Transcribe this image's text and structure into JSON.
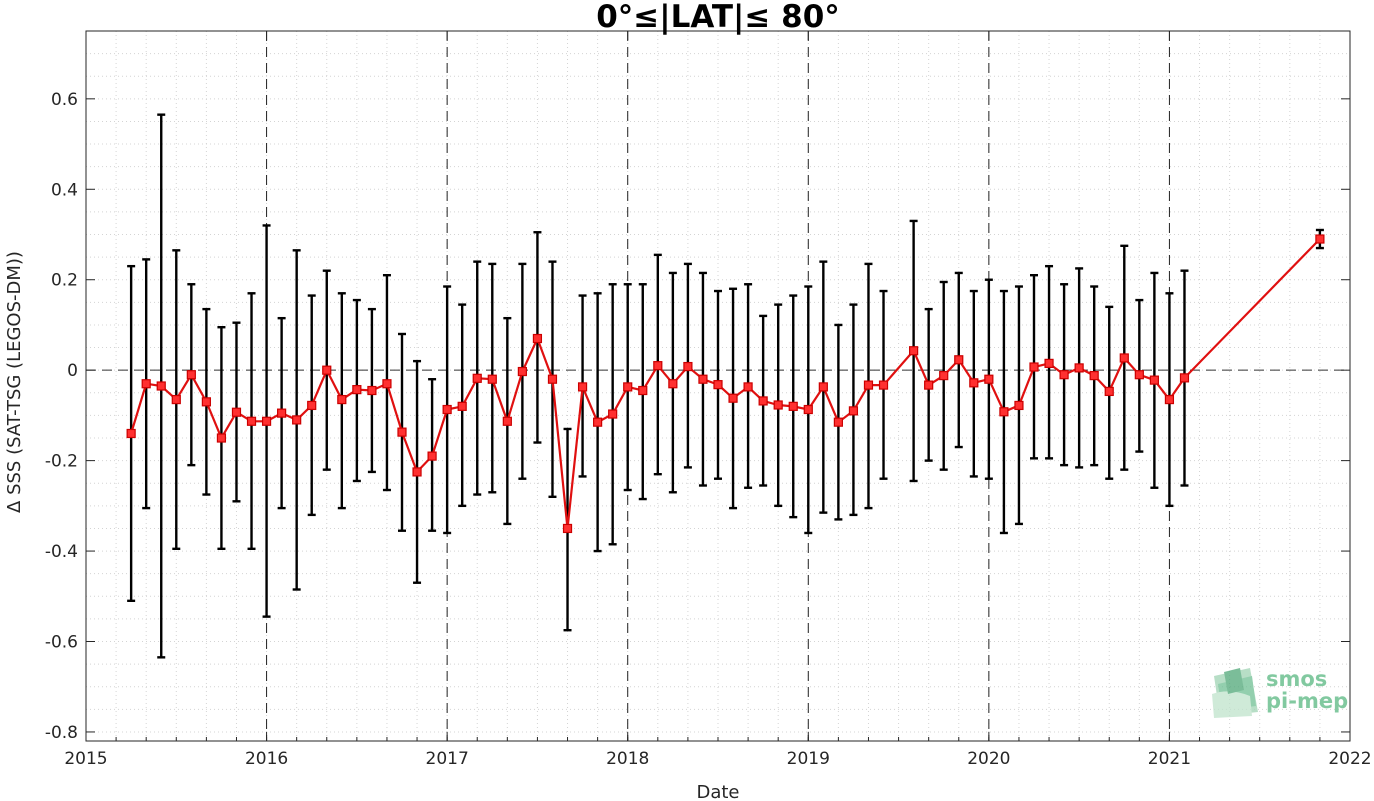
{
  "chart_data": {
    "type": "line",
    "title": "0°≤|LAT|≤ 80°",
    "xlabel": "Date",
    "ylabel": "Δ SSS (SAT-TSG (LEGOS-DM))",
    "xlim": [
      "2015-01-01",
      "2022-01-01"
    ],
    "ylim": [
      -0.82,
      0.75
    ],
    "x_ticks": [
      "2015",
      "2016",
      "2017",
      "2018",
      "2019",
      "2020",
      "2021",
      "2022"
    ],
    "y_ticks": [
      "0.6",
      "0.4",
      "0.2",
      "0",
      "-0.2",
      "-0.4",
      "-0.6",
      "-0.8"
    ],
    "grid": "minor dotted",
    "year_divider_lines": "dashed",
    "zero_line": "dashed",
    "series": [
      {
        "color": "#e01010",
        "errorbar_color": "#000000",
        "marker": "square",
        "points": [
          {
            "x": "2015-04",
            "y": -0.14,
            "low": -0.51,
            "high": 0.23
          },
          {
            "x": "2015-05",
            "y": -0.03,
            "low": -0.305,
            "high": 0.245
          },
          {
            "x": "2015-06",
            "y": -0.035,
            "low": -0.635,
            "high": 0.565
          },
          {
            "x": "2015-07",
            "y": -0.065,
            "low": -0.395,
            "high": 0.265
          },
          {
            "x": "2015-08",
            "y": -0.01,
            "low": -0.21,
            "high": 0.19
          },
          {
            "x": "2015-09",
            "y": -0.07,
            "low": -0.275,
            "high": 0.135
          },
          {
            "x": "2015-10",
            "y": -0.15,
            "low": -0.395,
            "high": 0.095
          },
          {
            "x": "2015-11",
            "y": -0.093,
            "low": -0.29,
            "high": 0.105
          },
          {
            "x": "2015-12",
            "y": -0.113,
            "low": -0.395,
            "high": 0.17
          },
          {
            "x": "2016-01",
            "y": -0.113,
            "low": -0.545,
            "high": 0.32
          },
          {
            "x": "2016-02",
            "y": -0.095,
            "low": -0.305,
            "high": 0.115
          },
          {
            "x": "2016-03",
            "y": -0.11,
            "low": -0.485,
            "high": 0.265
          },
          {
            "x": "2016-04",
            "y": -0.078,
            "low": -0.32,
            "high": 0.165
          },
          {
            "x": "2016-05",
            "y": 0.0,
            "low": -0.22,
            "high": 0.22
          },
          {
            "x": "2016-06",
            "y": -0.065,
            "low": -0.305,
            "high": 0.17
          },
          {
            "x": "2016-07",
            "y": -0.043,
            "low": -0.245,
            "high": 0.155
          },
          {
            "x": "2016-08",
            "y": -0.045,
            "low": -0.225,
            "high": 0.135
          },
          {
            "x": "2016-09",
            "y": -0.03,
            "low": -0.265,
            "high": 0.21
          },
          {
            "x": "2016-10",
            "y": -0.137,
            "low": -0.355,
            "high": 0.08
          },
          {
            "x": "2016-11",
            "y": -0.225,
            "low": -0.47,
            "high": 0.02
          },
          {
            "x": "2016-12",
            "y": -0.19,
            "low": -0.355,
            "high": -0.02
          },
          {
            "x": "2017-01",
            "y": -0.087,
            "low": -0.36,
            "high": 0.185
          },
          {
            "x": "2017-02",
            "y": -0.08,
            "low": -0.3,
            "high": 0.145
          },
          {
            "x": "2017-03",
            "y": -0.018,
            "low": -0.275,
            "high": 0.24
          },
          {
            "x": "2017-04",
            "y": -0.02,
            "low": -0.27,
            "high": 0.235
          },
          {
            "x": "2017-05",
            "y": -0.113,
            "low": -0.34,
            "high": 0.115
          },
          {
            "x": "2017-06",
            "y": -0.003,
            "low": -0.24,
            "high": 0.235
          },
          {
            "x": "2017-07",
            "y": 0.07,
            "low": -0.16,
            "high": 0.305
          },
          {
            "x": "2017-08",
            "y": -0.02,
            "low": -0.28,
            "high": 0.24
          },
          {
            "x": "2017-09",
            "y": -0.35,
            "low": -0.575,
            "high": -0.13
          },
          {
            "x": "2017-10",
            "y": -0.037,
            "low": -0.235,
            "high": 0.165
          },
          {
            "x": "2017-11",
            "y": -0.115,
            "low": -0.4,
            "high": 0.17
          },
          {
            "x": "2017-12",
            "y": -0.097,
            "low": -0.385,
            "high": 0.19
          },
          {
            "x": "2018-01",
            "y": -0.037,
            "low": -0.265,
            "high": 0.19
          },
          {
            "x": "2018-02",
            "y": -0.045,
            "low": -0.285,
            "high": 0.19
          },
          {
            "x": "2018-03",
            "y": 0.01,
            "low": -0.23,
            "high": 0.255
          },
          {
            "x": "2018-04",
            "y": -0.03,
            "low": -0.27,
            "high": 0.215
          },
          {
            "x": "2018-05",
            "y": 0.008,
            "low": -0.215,
            "high": 0.235
          },
          {
            "x": "2018-06",
            "y": -0.02,
            "low": -0.255,
            "high": 0.215
          },
          {
            "x": "2018-07",
            "y": -0.032,
            "low": -0.24,
            "high": 0.175
          },
          {
            "x": "2018-08",
            "y": -0.062,
            "low": -0.305,
            "high": 0.18
          },
          {
            "x": "2018-09",
            "y": -0.037,
            "low": -0.26,
            "high": 0.19
          },
          {
            "x": "2018-10",
            "y": -0.068,
            "low": -0.255,
            "high": 0.12
          },
          {
            "x": "2018-11",
            "y": -0.077,
            "low": -0.3,
            "high": 0.145
          },
          {
            "x": "2018-12",
            "y": -0.08,
            "low": -0.325,
            "high": 0.165
          },
          {
            "x": "2019-01",
            "y": -0.087,
            "low": -0.36,
            "high": 0.185
          },
          {
            "x": "2019-02",
            "y": -0.037,
            "low": -0.315,
            "high": 0.24
          },
          {
            "x": "2019-03",
            "y": -0.115,
            "low": -0.33,
            "high": 0.1
          },
          {
            "x": "2019-04",
            "y": -0.09,
            "low": -0.32,
            "high": 0.145
          },
          {
            "x": "2019-05",
            "y": -0.033,
            "low": -0.305,
            "high": 0.235
          },
          {
            "x": "2019-06",
            "y": -0.033,
            "low": -0.24,
            "high": 0.175
          },
          {
            "x": "2019-08",
            "y": 0.043,
            "low": -0.245,
            "high": 0.33
          },
          {
            "x": "2019-09",
            "y": -0.033,
            "low": -0.2,
            "high": 0.135
          },
          {
            "x": "2019-10",
            "y": -0.012,
            "low": -0.22,
            "high": 0.195
          },
          {
            "x": "2019-11",
            "y": 0.023,
            "low": -0.17,
            "high": 0.215
          },
          {
            "x": "2019-12",
            "y": -0.028,
            "low": -0.235,
            "high": 0.175
          },
          {
            "x": "2020-01",
            "y": -0.02,
            "low": -0.24,
            "high": 0.2
          },
          {
            "x": "2020-02",
            "y": -0.092,
            "low": -0.36,
            "high": 0.175
          },
          {
            "x": "2020-03",
            "y": -0.078,
            "low": -0.34,
            "high": 0.185
          },
          {
            "x": "2020-04",
            "y": 0.007,
            "low": -0.195,
            "high": 0.21
          },
          {
            "x": "2020-05",
            "y": 0.015,
            "low": -0.195,
            "high": 0.23
          },
          {
            "x": "2020-06",
            "y": -0.01,
            "low": -0.21,
            "high": 0.19
          },
          {
            "x": "2020-07",
            "y": 0.005,
            "low": -0.215,
            "high": 0.225
          },
          {
            "x": "2020-08",
            "y": -0.012,
            "low": -0.21,
            "high": 0.185
          },
          {
            "x": "2020-09",
            "y": -0.047,
            "low": -0.24,
            "high": 0.14
          },
          {
            "x": "2020-10",
            "y": 0.027,
            "low": -0.22,
            "high": 0.275
          },
          {
            "x": "2020-11",
            "y": -0.01,
            "low": -0.18,
            "high": 0.155
          },
          {
            "x": "2020-12",
            "y": -0.022,
            "low": -0.26,
            "high": 0.215
          },
          {
            "x": "2021-01",
            "y": -0.065,
            "low": -0.3,
            "high": 0.17
          },
          {
            "x": "2021-02",
            "y": -0.017,
            "low": -0.255,
            "high": 0.22
          },
          {
            "x": "2021-11",
            "y": 0.29,
            "low": 0.27,
            "high": 0.31
          }
        ]
      }
    ]
  },
  "logo": {
    "line1": "smos",
    "line2": "pi-mep"
  }
}
